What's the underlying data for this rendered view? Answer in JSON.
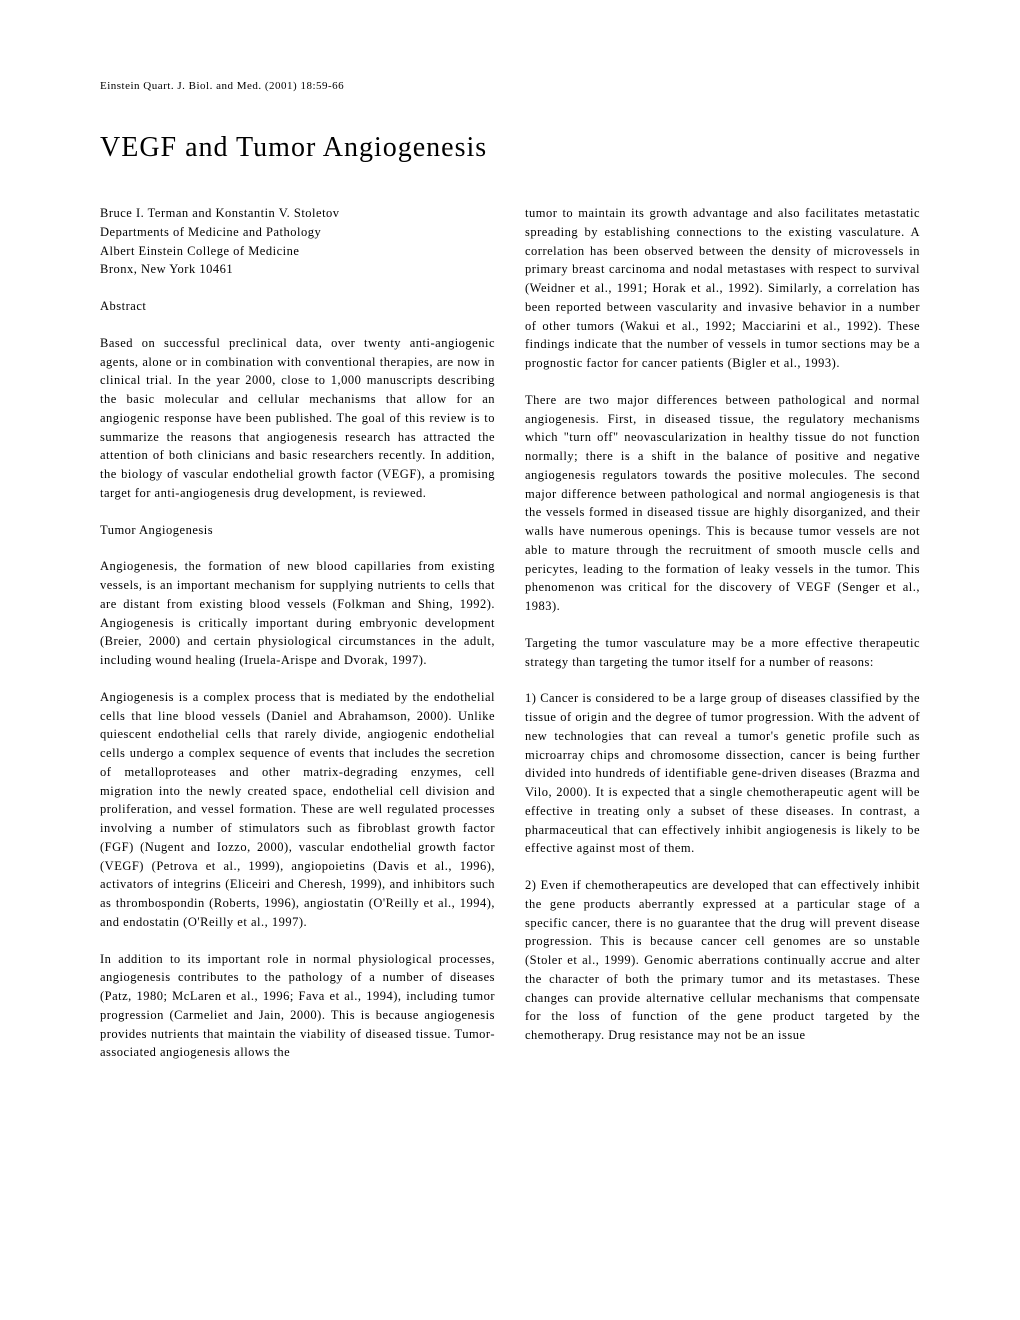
{
  "journal_header": "Einstein Quart. J. Biol. and Med. (2001) 18:59-66",
  "title": "VEGF and Tumor Angiogenesis",
  "authors": {
    "names": "Bruce I. Terman and Konstantin V. Stoletov",
    "dept": "Departments of Medicine and Pathology",
    "inst": "Albert Einstein College of Medicine",
    "loc": "Bronx, New York 10461"
  },
  "left": {
    "abstract_heading": "Abstract",
    "abstract_body": "Based on successful preclinical data, over twenty anti-angiogenic agents, alone or in combination with conventional therapies, are now in clinical trial. In the year 2000, close to 1,000 manuscripts describing the basic molecular and cellular mechanisms that allow for an angiogenic response have been published. The goal of this review is to summarize the reasons that angiogenesis research has attracted the attention of both clinicians and basic researchers recently. In addition, the biology of vascular endothelial growth factor (VEGF), a promising target for anti-angiogenesis drug development, is reviewed.",
    "section_heading": "Tumor Angiogenesis",
    "p1": "Angiogenesis, the formation of new blood capillaries from existing vessels, is an important mechanism for supplying nutrients to cells that are distant from existing blood vessels (Folkman and Shing, 1992). Angiogenesis is critically important during embryonic development (Breier, 2000) and certain physiological circumstances in the adult, including wound healing (Iruela-Arispe and Dvorak, 1997).",
    "p2": "Angiogenesis is a complex process that is mediated by the endothelial cells that line blood vessels (Daniel and Abrahamson, 2000). Unlike quiescent endothelial cells that rarely divide, angiogenic endothelial cells undergo a complex sequence of events that includes the secretion of metalloproteases and other matrix-degrading enzymes, cell migration into the newly created space, endothelial cell division and proliferation, and vessel formation. These are well regulated processes involving a number of stimulators such as fibroblast growth factor (FGF) (Nugent and Iozzo, 2000), vascular endothelial growth factor (VEGF) (Petrova et al., 1999), angiopoietins (Davis et al., 1996), activators of integrins (Eliceiri and Cheresh, 1999), and inhibitors such as thrombospondin (Roberts, 1996), angiostatin (O'Reilly et al., 1994), and endostatin (O'Reilly et al., 1997).",
    "p3": "In addition to its important role in normal physiological processes, angiogenesis contributes to the pathology of a number of diseases (Patz, 1980; McLaren et al., 1996; Fava et al., 1994), including tumor progression (Carmeliet and Jain, 2000). This is because angiogenesis provides nutrients that maintain the viability of diseased tissue. Tumor-associated angiogenesis allows the"
  },
  "right": {
    "p1": "tumor to maintain its growth advantage and also facilitates metastatic spreading by establishing connections to the existing vasculature. A correlation has been observed between the density of microvessels in primary breast carcinoma and nodal metastases with respect to survival (Weidner et al., 1991; Horak et al., 1992). Similarly, a correlation has been reported between vascularity and invasive behavior in a number of other tumors (Wakui et al., 1992; Macciarini et al., 1992). These findings indicate that the number of vessels in tumor sections may be a prognostic factor for cancer patients (Bigler et al., 1993).",
    "p2": "There are two major differences between pathological and normal angiogenesis. First, in diseased tissue, the regulatory mechanisms which \"turn off\" neovascularization in healthy tissue do not function normally; there is a shift in the balance of positive and negative angiogenesis regulators towards the positive molecules. The second major difference between pathological and normal angiogenesis is that the vessels formed in diseased tissue are highly disorganized, and their walls have numerous openings. This is because tumor vessels are not able to mature through the recruitment of smooth muscle cells and pericytes, leading to the formation of leaky vessels in the tumor. This phenomenon was critical for the discovery of VEGF (Senger et al., 1983).",
    "p3": "Targeting the tumor vasculature may be a more effective therapeutic strategy than targeting the tumor itself for a number of reasons:",
    "p4": "1) Cancer is considered to be a large group of diseases classified by the tissue of origin and the degree of tumor progression. With the advent of new technologies that can reveal a tumor's genetic profile such as microarray chips and chromosome dissection, cancer is being further divided into hundreds of identifiable gene-driven diseases (Brazma and Vilo, 2000). It is expected that a single chemotherapeutic agent will be effective in treating only a subset of these diseases. In contrast, a pharmaceutical that can effectively inhibit angiogenesis is likely to be effective against most of them.",
    "p5": "2) Even if chemotherapeutics are developed that can effectively inhibit the gene products aberrantly expressed at a particular stage of a specific cancer, there is no guarantee that the drug will prevent disease progression. This is because cancer cell genomes are so unstable (Stoler et al., 1999). Genomic aberrations continually accrue and alter the character of both the primary tumor and its metastases. These changes can provide alternative cellular mechanisms that compensate for the loss of function of the gene product targeted by the chemotherapy. Drug resistance may not be an issue"
  }
}
